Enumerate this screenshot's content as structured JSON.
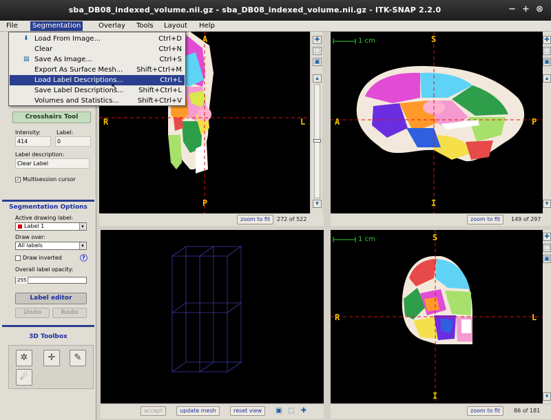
{
  "window": {
    "title": "sba_DB08_indexed_volume.nii.gz - sba_DB08_indexed_volume.nii.gz - ITK-SNAP 2.2.0",
    "controls": [
      "−",
      "+",
      "⊗"
    ]
  },
  "menubar": {
    "items": [
      "File",
      "Segmentation",
      "Overlay",
      "Tools",
      "Layout",
      "Help"
    ],
    "active": "Segmentation"
  },
  "segmentation_menu": {
    "items": [
      {
        "label": "Load From Image...",
        "shortcut": "Ctrl+D"
      },
      {
        "label": "Clear",
        "shortcut": "Ctrl+N"
      },
      {
        "label": "Save As Image...",
        "shortcut": "Ctrl+S"
      },
      {
        "label": "Export As Surface Mesh...",
        "shortcut": "Shift+Ctrl+M"
      },
      {
        "label": "Load Label Descriptions...",
        "shortcut": "Ctrl+L"
      },
      {
        "label": "Save Label Descriptions...",
        "shortcut": "Shift+Ctrl+L"
      },
      {
        "label": "Volumes and Statistics...",
        "shortcut": "Shift+Ctrl+V"
      }
    ],
    "highlighted_index": 4
  },
  "left_panel": {
    "crosshairs_button": "Crosshairs Tool",
    "intensity_label": "Intensity:",
    "intensity_value": "414",
    "label_label": "Label:",
    "label_value": "0",
    "label_description_label": "Label description:",
    "label_description_value": "Clear Label",
    "multisession": "Multisession cursor",
    "multisession_checked": true,
    "seg_options_title": "Segmentation Options",
    "active_drawing_label": "Active drawing label:",
    "active_label_value": "Label 1",
    "active_label_color": "#e00000",
    "draw_over_label": "Draw over:",
    "draw_over_value": "All labels",
    "draw_inverted": "Draw inverted",
    "help_glyph": "?",
    "opacity_label": "Overall label opacity:",
    "opacity_value": "255",
    "label_editor_button": "Label editor",
    "undo_button": "Undo",
    "redo_button": "Redo",
    "toolbox_title": "3D Toolbox"
  },
  "views": {
    "axial": {
      "orient_left": "R",
      "orient_right": "L",
      "orient_top": "A",
      "orient_bottom": "P",
      "zoom_button": "zoom to fit",
      "slice": "272 of 522"
    },
    "sagittal": {
      "orient_left": "A",
      "orient_right": "P",
      "orient_top": "S",
      "orient_bottom": "I",
      "zoom_button": "zoom to fit",
      "slice": "149 of 297",
      "scale_label": "1 cm"
    },
    "three_d": {
      "accept_button": "accept",
      "update_mesh_button": "update mesh",
      "reset_view_button": "reset view"
    },
    "coronal": {
      "orient_left": "R",
      "orient_right": "L",
      "orient_top": "S",
      "orient_bottom": "I",
      "zoom_button": "zoom to fit",
      "slice": "86 of 181",
      "scale_label": "1 cm"
    }
  },
  "colors": {
    "menu_highlight": "#2a3f8f",
    "orientation_text": "#f5c200",
    "scale_bar": "#2fd12f",
    "crosshair": "#e01010",
    "section_title": "#1b2f9e"
  }
}
